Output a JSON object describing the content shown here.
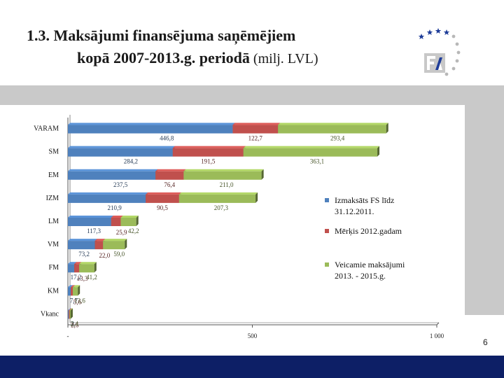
{
  "slide": {
    "title_line1": "1.3. Maksājumi finansējuma saņēmējiem",
    "title_line2_bold": "kopā 2007-2013.g. periodā",
    "title_unit": " (milj. LVL)",
    "page_number": "6"
  },
  "colors": {
    "series": [
      "#4f81bd",
      "#c0504d",
      "#9bbb59"
    ],
    "bottom_band": "#0d1f66",
    "grey_band": "#c9c9c9"
  },
  "chart_data": {
    "type": "bar",
    "orientation": "horizontal",
    "stacked": true,
    "categories": [
      "VARAM",
      "SM",
      "EM",
      "IZM",
      "LM",
      "VM",
      "FM",
      "KM",
      "Vkanc"
    ],
    "series": [
      {
        "name": "Izmaksāts FS līdz 31.12.2011.",
        "values": [
          446.8,
          284.2,
          237.5,
          210.9,
          117.3,
          73.2,
          17.2,
          7.7,
          2.0
        ],
        "labels": [
          "446,8",
          "284,2",
          "237,5",
          "210,9",
          "117,3",
          "73,2",
          "17,2",
          "7,7",
          "2"
        ]
      },
      {
        "name": "Mērķis 2012.gadam",
        "values": [
          122.7,
          191.5,
          76.4,
          90.5,
          25.9,
          22.0,
          13.3,
          5.6,
          2.6
        ],
        "labels": [
          "122,7",
          "191,5",
          "76,4",
          "90,5",
          "25,9",
          "22,0",
          "13,3",
          "5,6",
          "2,6"
        ]
      },
      {
        "name": "Veicamie maksājumi 2013. - 2015.g.",
        "values": [
          293.4,
          363.1,
          211.0,
          207.3,
          42.2,
          59.0,
          41.2,
          13.6,
          2.4
        ],
        "labels": [
          "293,4",
          "363,1",
          "211,0",
          "207,3",
          "42,2",
          "59,0",
          "41,2",
          "13,6",
          "2,4"
        ]
      }
    ],
    "x_ticks": [
      "-",
      "500",
      "1 000"
    ],
    "xlim": [
      0,
      1000
    ],
    "legend_position": "right",
    "grid": false
  }
}
